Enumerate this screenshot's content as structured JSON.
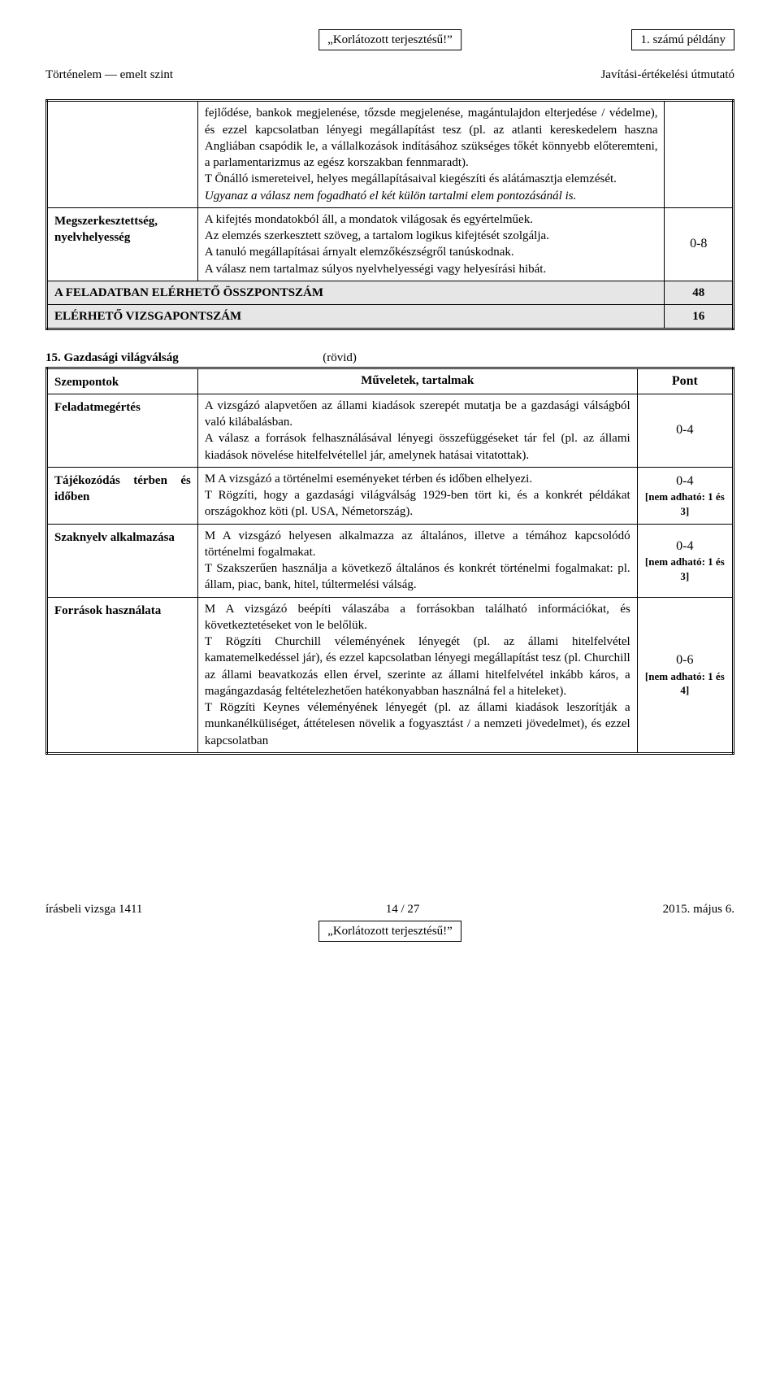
{
  "header": {
    "restricted": "„Korlátozott terjesztésű!”",
    "copy": "1. számú példány",
    "left": "Történelem — emelt szint",
    "right": "Javítási-értékelési útmutató"
  },
  "table1": {
    "col_widths": [
      "22%",
      "68%",
      "10%"
    ],
    "rows": [
      {
        "label": "",
        "body": [
          {
            "t": "fejlődése, bankok megjelenése, tőzsde megjelenése, magántulajdon elterjedése / védelme), és ezzel kapcsolatban lényegi megállapítást tesz (pl. az atlanti kereskedelem haszna Angliában csapódik le, a vállalkozások indításához szükséges tőkét könnyebb előteremteni, a parlamentarizmus az egész korszakban fennmaradt)."
          },
          {
            "t": "T Önálló ismereteivel, helyes megállapításaival kiegészíti és alátámasztja elemzését."
          },
          {
            "t": "Ugyanaz a válasz nem fogadható el két külön tartalmi elem pontozásánál is.",
            "style": "it"
          }
        ],
        "score": ""
      },
      {
        "label": "Megszerkesztettség, nyelvhelyesség",
        "body": [
          {
            "t": "A kifejtés mondatokból áll, a mondatok világosak és egyértelműek."
          },
          {
            "t": "Az elemzés szerkesztett szöveg, a tartalom logikus kifejtését szolgálja."
          },
          {
            "t": "A tanuló megállapításai árnyalt elemzőkészségről tanúskodnak."
          },
          {
            "t": "A válasz nem tartalmaz súlyos nyelvhelyességi vagy helyesírási hibát."
          }
        ],
        "score": "0-8"
      }
    ],
    "summary": [
      {
        "label": "A FELADATBAN ELÉRHETŐ ÖSSZPONTSZÁM",
        "score": "48"
      },
      {
        "label": "ELÉRHETŐ VIZSGAPONTSZÁM",
        "score": "16"
      }
    ]
  },
  "task15": {
    "title_num": "15. Gazdasági világválság",
    "title_right": "(rövid)"
  },
  "table2": {
    "col_widths": [
      "22%",
      "64%",
      "14%"
    ],
    "header": {
      "c1": "Szempontok",
      "c2": "Műveletek, tartalmak",
      "c3": "Pont"
    },
    "rows": [
      {
        "label": "Feladatmegértés",
        "body": [
          {
            "t": "A vizsgázó alapvetően az állami kiadások szerepét mutatja be a gazdasági válságból való kilábalásban."
          },
          {
            "t": "A válasz a források felhasználásával lényegi összefüggéseket tár fel (pl. az állami kiadások növelése hitelfelvétellel jár, amelynek hatásai vitatottak)."
          }
        ],
        "score": "0-4"
      },
      {
        "label": "Tájékozódás térben és időben",
        "body": [
          {
            "t": "M A vizsgázó a történelmi eseményeket térben és időben elhelyezi."
          },
          {
            "t": "T Rögzíti, hogy a gazdasági világválság 1929-ben tört ki, és a konkrét példákat országokhoz köti (pl. USA, Németország)."
          }
        ],
        "score": "0-4\n[nem adható: 1 és 3]"
      },
      {
        "label": "Szaknyelv alkalmazása",
        "body": [
          {
            "t": "M A vizsgázó helyesen alkalmazza az általános, illetve a témához kapcsolódó történelmi fogalmakat."
          },
          {
            "t": "T Szakszerűen használja a következő általános és konkrét történelmi fogalmakat: pl. állam, piac, bank, hitel, túltermelési válság."
          }
        ],
        "score": "0-4\n[nem adható: 1 és 3]"
      },
      {
        "label": "Források használata",
        "body": [
          {
            "t": "M A vizsgázó beépíti válaszába a forrásokban található információkat, és következtetéseket von le belőlük."
          },
          {
            "t": "T Rögzíti Churchill véleményének lényegét (pl. az állami hitelfelvétel kamatemelkedéssel jár), és ezzel kapcsolatban lényegi megállapítást tesz (pl. Churchill az állami beavatkozás ellen érvel, szerinte az állami hitelfelvétel inkább káros, a magángazdaság feltételezhetően hatékonyabban használná fel a hiteleket)."
          },
          {
            "t": "T Rögzíti Keynes véleményének lényegét (pl. az állami kiadások leszorítják a munkanélküliséget, áttételesen növelik a fogyasztást / a nemzeti jövedelmet), és ezzel kapcsolatban"
          }
        ],
        "score": "0-6\n[nem adható: 1 és 4]"
      }
    ]
  },
  "footer": {
    "left": "írásbeli vizsga 1411",
    "center_page": "14 / 27",
    "right": "2015. május 6.",
    "restricted": "„Korlátozott terjesztésű!”"
  }
}
